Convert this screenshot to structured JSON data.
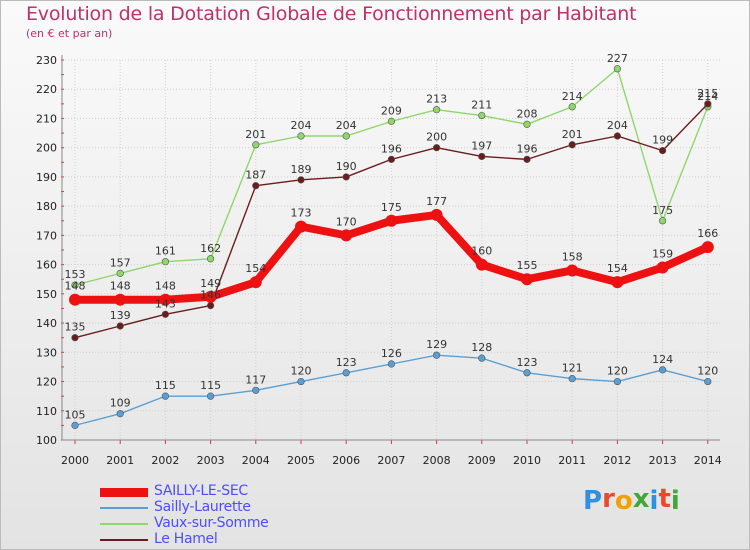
{
  "title": "Evolution de la Dotation Globale de Fonctionnement par Habitant",
  "subtitle": "(en € et par an)",
  "logo_text": "Proxiti",
  "logo_colors": [
    "#2f8fe0",
    "#e94a2b",
    "#f5a000",
    "#43a63b",
    "#2f8fe0",
    "#e94a2b",
    "#43a63b"
  ],
  "colors": {
    "grid": "#d0d0d0",
    "axis": "#888888",
    "series_label": "#4d4dff"
  },
  "chart_data": {
    "type": "line",
    "title": "Evolution de la Dotation Globale de Fonctionnement par Habitant",
    "subtitle": "(en € et par an)",
    "xlabel": "",
    "ylabel": "",
    "x": [
      "2000",
      "2001",
      "2002",
      "2003",
      "2004",
      "2005",
      "2006",
      "2007",
      "2008",
      "2009",
      "2010",
      "2011",
      "2012",
      "2013",
      "2014"
    ],
    "ylim": [
      100,
      230
    ],
    "yticks": [
      100,
      110,
      120,
      130,
      140,
      150,
      160,
      170,
      180,
      190,
      200,
      210,
      220,
      230
    ],
    "grid": true,
    "legend_position": "bottom-left",
    "series": [
      {
        "name": "SAILLY-LE-SEC",
        "color": "#ee1111",
        "values": [
          148,
          148,
          148,
          149,
          154,
          173,
          170,
          175,
          177,
          160,
          155,
          158,
          154,
          159,
          166
        ],
        "labels": [
          "148",
          "148",
          "148",
          "149",
          "154",
          "173",
          "170",
          "175",
          "177",
          "160",
          "155",
          "158",
          "154",
          "159",
          "166"
        ]
      },
      {
        "name": "Sailly-Laurette",
        "color": "#5a9fd4",
        "values": [
          105,
          109,
          115,
          115,
          117,
          120,
          123,
          126,
          129,
          128,
          123,
          121,
          120,
          124,
          120
        ],
        "labels": [
          "105",
          "109",
          "115",
          "115",
          "117",
          "120",
          "123",
          "126",
          "129",
          "128",
          "123",
          "121",
          "120",
          "124",
          "120"
        ]
      },
      {
        "name": "Vaux-sur-Somme",
        "color": "#8fd66b",
        "values": [
          153,
          157,
          161,
          162,
          201,
          204,
          204,
          209,
          213,
          211,
          208,
          214,
          227,
          175,
          214
        ],
        "labels": [
          "153",
          "157",
          "161",
          "162",
          "201",
          "204",
          "204",
          "209",
          "213",
          "211",
          "208",
          "214",
          "227",
          "175",
          "214"
        ]
      },
      {
        "name": "Le Hamel",
        "color": "#6b1c1c",
        "values": [
          135,
          139,
          143,
          146,
          187,
          189,
          190,
          196,
          200,
          197,
          196,
          201,
          204,
          199,
          215
        ],
        "labels": [
          "135",
          "139",
          "143",
          "146",
          "187",
          "189",
          "190",
          "196",
          "200",
          "197",
          "196",
          "201",
          "204",
          "199",
          "215"
        ]
      }
    ]
  }
}
